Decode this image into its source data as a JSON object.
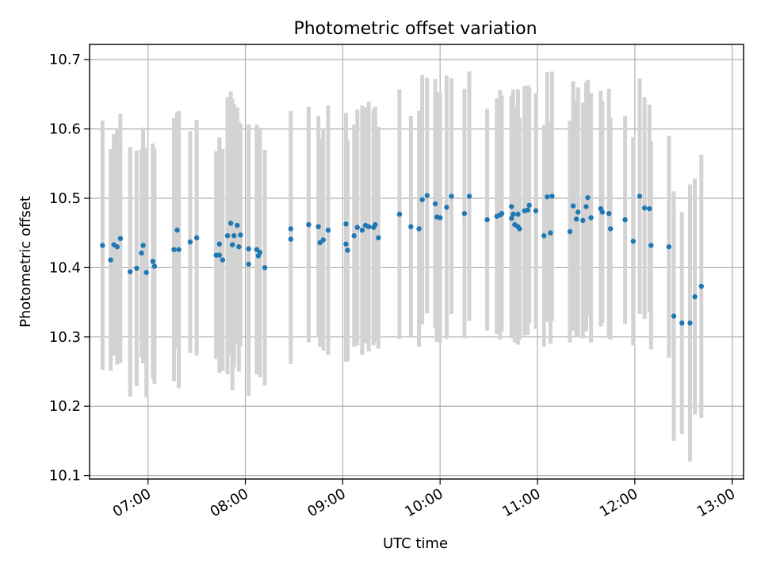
{
  "chart_data": {
    "type": "scatter",
    "title": "Photometric offset variation",
    "xlabel": "UTC time",
    "ylabel": "Photometric offset",
    "x_tick_labels": [
      "07:00",
      "08:00",
      "09:00",
      "10:00",
      "11:00",
      "12:00",
      "13:00"
    ],
    "y_tick_labels": [
      "10.1",
      "10.2",
      "10.3",
      "10.4",
      "10.5",
      "10.6",
      "10.7"
    ],
    "x_ticks": [
      "07:00",
      "08:00",
      "09:00",
      "10:00",
      "11:00",
      "12:00",
      "13:00"
    ],
    "y_ticks": [
      10.1,
      10.2,
      10.3,
      10.4,
      10.5,
      10.6,
      10.7
    ],
    "xlim": [
      "06:24",
      "13:07"
    ],
    "ylim": [
      10.095,
      10.722
    ],
    "grid": true,
    "errorbar_color": "#d3d3d3",
    "marker_color": "#1f77b4",
    "series": [
      {
        "x": [
          "06:32",
          "06:37",
          "06:39",
          "06:41",
          "06:43",
          "06:49",
          "06:53",
          "06:56",
          "06:57",
          "06:59",
          "07:03",
          "07:04",
          "07:16",
          "07:18",
          "07:19",
          "07:26",
          "07:30",
          "07:42",
          "07:44",
          "07:44",
          "07:46",
          "07:49",
          "07:51",
          "07:52",
          "07:53",
          "07:55",
          "07:56",
          "07:57",
          "08:02",
          "08:02",
          "08:07",
          "08:08",
          "08:09",
          "08:12",
          "08:28",
          "08:28",
          "08:39",
          "08:45",
          "08:46",
          "08:48",
          "08:51",
          "09:02",
          "09:02",
          "09:03",
          "09:07",
          "09:09",
          "09:12",
          "09:14",
          "09:16",
          "09:19",
          "09:20",
          "09:22",
          "09:35",
          "09:42",
          "09:47",
          "09:49",
          "09:52",
          "09:57",
          "09:58",
          "10:00",
          "10:04",
          "10:07",
          "10:15",
          "10:18",
          "10:29",
          "10:35",
          "10:37",
          "10:38",
          "10:44",
          "10:44",
          "10:45",
          "10:46",
          "10:48",
          "10:48",
          "10:49",
          "10:52",
          "10:54",
          "10:55",
          "10:59",
          "11:04",
          "11:06",
          "11:08",
          "11:09",
          "11:20",
          "11:22",
          "11:24",
          "11:25",
          "11:28",
          "11:30",
          "11:31",
          "11:33",
          "11:39",
          "11:40",
          "11:44",
          "11:45",
          "11:54",
          "11:59",
          "12:03",
          "12:06",
          "12:09",
          "12:10",
          "12:21",
          "12:24",
          "12:29",
          "12:34",
          "12:37",
          "12:41"
        ],
        "y": [
          10.432,
          10.411,
          10.433,
          10.43,
          10.442,
          10.394,
          10.399,
          10.421,
          10.432,
          10.393,
          10.409,
          10.402,
          10.426,
          10.454,
          10.426,
          10.437,
          10.443,
          10.418,
          10.434,
          10.418,
          10.411,
          10.446,
          10.464,
          10.433,
          10.446,
          10.461,
          10.43,
          10.447,
          10.427,
          10.405,
          10.426,
          10.417,
          10.422,
          10.4,
          10.441,
          10.456,
          10.462,
          10.459,
          10.436,
          10.44,
          10.454,
          10.463,
          10.434,
          10.425,
          10.446,
          10.458,
          10.454,
          10.461,
          10.459,
          10.458,
          10.462,
          10.443,
          10.477,
          10.459,
          10.456,
          10.498,
          10.504,
          10.492,
          10.473,
          10.472,
          10.487,
          10.503,
          10.478,
          10.503,
          10.469,
          10.474,
          10.476,
          10.478,
          10.488,
          10.471,
          10.477,
          10.462,
          10.477,
          10.459,
          10.456,
          10.482,
          10.483,
          10.49,
          10.482,
          10.446,
          10.502,
          10.45,
          10.503,
          10.452,
          10.489,
          10.47,
          10.48,
          10.468,
          10.488,
          10.501,
          10.472,
          10.485,
          10.48,
          10.478,
          10.456,
          10.469,
          10.438,
          10.503,
          10.486,
          10.485,
          10.432,
          10.43,
          10.33,
          10.32,
          10.32,
          10.358,
          10.373
        ],
        "yerr": [
          0.18,
          0.16,
          0.16,
          0.17,
          0.18,
          0.18,
          0.17,
          0.15,
          0.17,
          0.18,
          0.17,
          0.17,
          0.19,
          0.17,
          0.2,
          0.16,
          0.17,
          0.15,
          0.15,
          0.17,
          0.16,
          0.2,
          0.19,
          0.21,
          0.19,
          0.17,
          0.18,
          0.16,
          0.18,
          0.19,
          0.18,
          0.17,
          0.18,
          0.17,
          0.18,
          0.17,
          0.17,
          0.16,
          0.15,
          0.16,
          0.18,
          0.16,
          0.17,
          0.16,
          0.16,
          0.17,
          0.18,
          0.17,
          0.18,
          0.17,
          0.17,
          0.16,
          0.18,
          0.16,
          0.17,
          0.18,
          0.17,
          0.18,
          0.18,
          0.18,
          0.19,
          0.17,
          0.18,
          0.18,
          0.16,
          0.17,
          0.18,
          0.17,
          0.16,
          0.17,
          0.18,
          0.17,
          0.18,
          0.17,
          0.16,
          0.18,
          0.18,
          0.17,
          0.17,
          0.16,
          0.18,
          0.16,
          0.18,
          0.16,
          0.18,
          0.17,
          0.18,
          0.17,
          0.18,
          0.17,
          0.18,
          0.17,
          0.16,
          0.18,
          0.16,
          0.15,
          0.15,
          0.17,
          0.16,
          0.15,
          0.15,
          0.16,
          0.18,
          0.16,
          0.2,
          0.17,
          0.19
        ]
      }
    ]
  }
}
